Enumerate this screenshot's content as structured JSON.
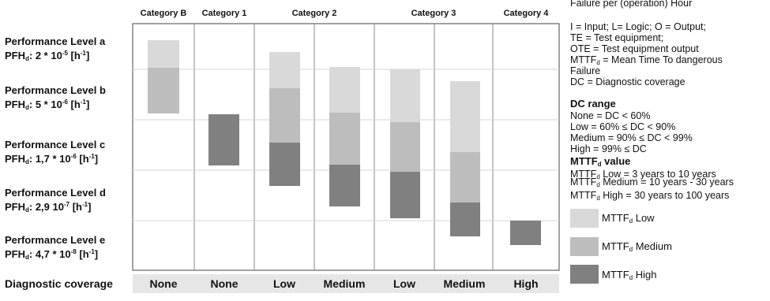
{
  "header_text": "Failure per (operation) Hour",
  "categories": [
    "Category B",
    "Category 1",
    "Category 2",
    "Category 3",
    "Category 4"
  ],
  "performance_levels": [
    {
      "label": "Performance Level a",
      "pfh_prefix": "PFH",
      "pfh_sub": "d",
      "pfh_value": ": 2 * 10",
      "pfh_exp": "-5",
      "pfh_unit": " [h",
      "pfh_unit_exp": "-1",
      "pfh_end": "]"
    },
    {
      "label": "Performance Level b",
      "pfh_prefix": "PFH",
      "pfh_sub": "d",
      "pfh_value": ": 5 * 10",
      "pfh_exp": "-6",
      "pfh_unit": " [h",
      "pfh_unit_exp": "-1",
      "pfh_end": "]"
    },
    {
      "label": "Performance Level c",
      "pfh_prefix": "PFH",
      "pfh_sub": "d",
      "pfh_value": ": 1,7 * 10",
      "pfh_exp": "-6",
      "pfh_unit": " [h",
      "pfh_unit_exp": "-1",
      "pfh_end": "]"
    },
    {
      "label": "Performance Level d",
      "pfh_prefix": "PFH",
      "pfh_sub": "d",
      "pfh_value": ": 2,9 10",
      "pfh_exp": "-7",
      "pfh_unit": " [h",
      "pfh_unit_exp": "-1",
      "pfh_end": "]"
    },
    {
      "label": "Performance Level e",
      "pfh_prefix": "PFH",
      "pfh_sub": "d",
      "pfh_value": ": 4,7 * 10",
      "pfh_exp": "-8",
      "pfh_unit": " [h",
      "pfh_unit_exp": "-1",
      "pfh_end": "]"
    }
  ],
  "diagnostic_coverage": {
    "label": "Diagnostic coverage",
    "values": [
      "None",
      "None",
      "Low",
      "Medium",
      "Low",
      "Medium",
      "High"
    ]
  },
  "abbreviations": [
    "I = Input;  L= Logic; O = Output;",
    "TE = Test equipment;",
    "OTE = Test equipment output"
  ],
  "mttfd_definition": {
    "prefix": "MTTF",
    "sub": "d",
    "text": " = Mean Time To dangerous",
    "line2": "Failure"
  },
  "dc_definition": "DC = Diagnostic coverage",
  "dc_range": {
    "title": "DC range",
    "items": [
      "None = DC < 60%",
      "Low = 60% ≤ DC < 90%",
      "Medium = 90% ≤ DC < 99%",
      "High = 99% ≤ DC"
    ]
  },
  "mttfd_value": {
    "title": "MTTF",
    "title_sub": "d",
    "title_suffix": " value",
    "items": [
      {
        "prefix": "MTTF",
        "sub": "d",
        "text": "  Low = 3 years to 10 years"
      },
      {
        "prefix": "MTTF",
        "sub": "d",
        "text": "  Medium = 10 years - 30 years"
      },
      {
        "prefix": "MTTF",
        "sub": "d",
        "text": "  High = 30 years to 100 years"
      }
    ]
  },
  "legend": [
    {
      "prefix": "MTTF",
      "sub": "d",
      "label": "  Low",
      "color": "#d9d9d9"
    },
    {
      "prefix": "MTTF",
      "sub": "d",
      "label": "  Medium",
      "color": "#bdbdbd"
    },
    {
      "prefix": "MTTF",
      "sub": "d",
      "label": "  High",
      "color": "#808080"
    }
  ],
  "colors": {
    "low": "#d9d9d9",
    "medium": "#bdbdbd",
    "high": "#808080",
    "dc_band": "#e6e6e6"
  }
}
